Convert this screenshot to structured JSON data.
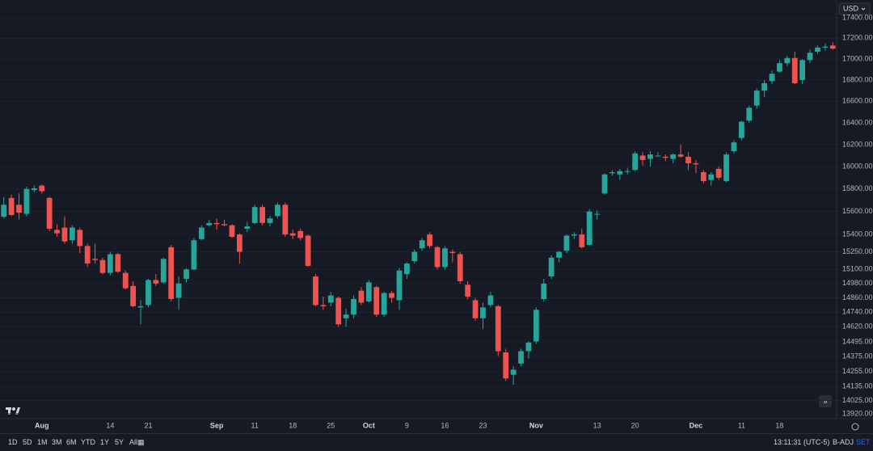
{
  "chart_data": {
    "type": "candlestick",
    "log_scale": true,
    "grid": true,
    "up_color": "#26a69a",
    "down_color": "#ef5350",
    "currency": "USD",
    "categories": [
      null,
      null,
      null,
      null,
      null,
      "Aug",
      null,
      null,
      null,
      null,
      null,
      null,
      null,
      null,
      "14",
      null,
      null,
      null,
      null,
      "21",
      null,
      null,
      null,
      null,
      null,
      null,
      null,
      null,
      "Sep",
      null,
      null,
      null,
      null,
      "11",
      null,
      null,
      null,
      null,
      "18",
      null,
      null,
      null,
      null,
      "25",
      null,
      null,
      null,
      null,
      "Oct",
      null,
      null,
      null,
      null,
      "9",
      null,
      null,
      null,
      null,
      "16",
      null,
      null,
      null,
      null,
      "23",
      null,
      null,
      null,
      null,
      null,
      null,
      "Nov",
      null,
      null,
      null,
      null,
      null,
      null,
      null,
      "13",
      null,
      null,
      null,
      null,
      "20",
      null,
      null,
      null,
      null,
      null,
      null,
      null,
      "Dec",
      null,
      null,
      null,
      null,
      null,
      "11",
      null,
      null,
      null,
      null,
      "18",
      null,
      null,
      null,
      null,
      null,
      null,
      null
    ],
    "open": [
      15555,
      15720,
      15660,
      15580,
      15790,
      15830,
      15720,
      15440,
      15460,
      15350,
      15440,
      15300,
      15190,
      15180,
      15070,
      15230,
      15070,
      14960,
      14780,
      14800,
      15010,
      14990,
      15290,
      14860,
      15020,
      15100,
      15360,
      15480,
      15500,
      15490,
      15480,
      15400,
      15450,
      15500,
      15640,
      15500,
      15560,
      15660,
      15410,
      15430,
      15390,
      15040,
      14800,
      14820,
      14860,
      14690,
      14720,
      14920,
      14830,
      14950,
      14720,
      14900,
      14840,
      15060,
      15170,
      15280,
      15400,
      15290,
      15120,
      15250,
      15230,
      14970,
      14840,
      14690,
      14800,
      14790,
      14410,
      14230,
      14320,
      14420,
      14500,
      14850,
      15040,
      15200,
      15260,
      15390,
      15400,
      15310,
      15580,
      15760,
      15940,
      15930,
      15960,
      15970,
      16100,
      16070,
      16100,
      16090,
      16070,
      16110,
      16090,
      16030,
      15950,
      15880,
      15980,
      15870,
      16140,
      16260,
      16420,
      16560,
      16700,
      16790,
      16880,
      16960,
      17010,
      16800,
      16990,
      17070,
      17110,
      17130
    ],
    "high": [
      15730,
      15750,
      15760,
      15820,
      15830,
      15840,
      15730,
      15490,
      15560,
      15480,
      15460,
      15320,
      15320,
      15200,
      15250,
      15240,
      15090,
      15000,
      14840,
      15020,
      15060,
      15200,
      15310,
      15040,
      15110,
      15370,
      15480,
      15530,
      15540,
      15530,
      15490,
      15410,
      15510,
      15660,
      15660,
      15560,
      15680,
      15680,
      15440,
      15450,
      15400,
      15060,
      14870,
      14910,
      14870,
      14770,
      14880,
      14950,
      15010,
      14960,
      14910,
      14920,
      15110,
      15160,
      15270,
      15370,
      15420,
      15300,
      15300,
      15270,
      15250,
      15000,
      14860,
      14820,
      14910,
      14800,
      14440,
      14300,
      14440,
      14500,
      14780,
      15020,
      15220,
      15260,
      15400,
      15420,
      15450,
      15620,
      15610,
      15940,
      15970,
      15980,
      15990,
      16140,
      16130,
      16140,
      16130,
      16110,
      16120,
      16200,
      16130,
      16060,
      15970,
      15950,
      16000,
      16130,
      16240,
      16420,
      16560,
      16720,
      16800,
      16890,
      16990,
      17030,
      17070,
      17000,
      17090,
      17130,
      17150,
      17160
    ],
    "low": [
      15540,
      15560,
      15530,
      15560,
      15770,
      15760,
      15430,
      15380,
      15320,
      15320,
      15240,
      15120,
      15150,
      15060,
      15050,
      15070,
      14930,
      14780,
      14640,
      14780,
      14960,
      14980,
      14830,
      14760,
      14990,
      15090,
      15350,
      15470,
      15440,
      15470,
      15370,
      15150,
      15420,
      15490,
      15480,
      15470,
      15540,
      15380,
      15360,
      15350,
      15120,
      14790,
      14760,
      14790,
      14620,
      14620,
      14690,
      14800,
      14820,
      14700,
      14700,
      14820,
      14760,
      15020,
      15150,
      15260,
      15280,
      15100,
      15100,
      15160,
      14980,
      14850,
      14670,
      14600,
      14780,
      14380,
      14180,
      14150,
      14300,
      14360,
      14480,
      14830,
      15020,
      15160,
      15240,
      15360,
      15280,
      15300,
      15530,
      15750,
      15920,
      15880,
      15930,
      15960,
      16010,
      16000,
      16090,
      16050,
      16030,
      16080,
      15970,
      15940,
      15850,
      15830,
      15880,
      15860,
      16120,
      16240,
      16400,
      16530,
      16640,
      16760,
      16870,
      16930,
      16760,
      16760,
      16960,
      17050,
      17080,
      17090
    ],
    "close": [
      15660,
      15570,
      15590,
      15800,
      15805,
      15780,
      15450,
      15410,
      15340,
      15460,
      15300,
      15150,
      15180,
      15070,
      15230,
      15080,
      14940,
      14790,
      14790,
      15010,
      14980,
      15190,
      14850,
      14980,
      15100,
      15350,
      15460,
      15500,
      15490,
      15480,
      15380,
      15250,
      15470,
      15640,
      15500,
      15540,
      15660,
      15400,
      15390,
      15370,
      15130,
      14800,
      14790,
      14880,
      14640,
      14720,
      14850,
      14820,
      14990,
      14720,
      14900,
      14860,
      15090,
      15150,
      15250,
      15350,
      15300,
      15120,
      15280,
      15240,
      15000,
      14870,
      14690,
      14780,
      14880,
      14420,
      14200,
      14270,
      14420,
      14490,
      14760,
      14980,
      15200,
      15250,
      15390,
      15400,
      15290,
      15600,
      15580,
      15930,
      15950,
      15960,
      15960,
      16120,
      16060,
      16110,
      16100,
      16080,
      16110,
      16090,
      16030,
      16020,
      15870,
      15930,
      15900,
      16110,
      16220,
      16410,
      16540,
      16700,
      16770,
      16860,
      16960,
      17010,
      16770,
      16990,
      17060,
      17110,
      17120,
      17100
    ],
    "ylim": [
      13882,
      17535
    ],
    "yticks": [
      {
        "value": 17400,
        "label": "17400.00"
      },
      {
        "value": 17200,
        "label": "17200.00"
      },
      {
        "value": 17000,
        "label": "17000.00"
      },
      {
        "value": 16800,
        "label": "16800.00"
      },
      {
        "value": 16600,
        "label": "16600.00"
      },
      {
        "value": 16400,
        "label": "16400.00"
      },
      {
        "value": 16200,
        "label": "16200.00"
      },
      {
        "value": 16000,
        "label": "16000.00"
      },
      {
        "value": 15800,
        "label": "15800.00"
      },
      {
        "value": 15600,
        "label": "15600.00"
      },
      {
        "value": 15400,
        "label": "15400.00"
      },
      {
        "value": 15250,
        "label": "15250.00"
      },
      {
        "value": 15100,
        "label": "15100.00"
      },
      {
        "value": 14980,
        "label": "14980.00"
      },
      {
        "value": 14860,
        "label": "14860.00"
      },
      {
        "value": 14740,
        "label": "14740.00"
      },
      {
        "value": 14620,
        "label": "14620.00"
      },
      {
        "value": 14495,
        "label": "14495.00"
      },
      {
        "value": 14375,
        "label": "14375.00"
      },
      {
        "value": 14255,
        "label": "14255.00"
      },
      {
        "value": 14135,
        "label": "14135.00"
      },
      {
        "value": 14025,
        "label": "14025.00"
      },
      {
        "value": 13920,
        "label": "13920.00"
      }
    ]
  },
  "toolbar": {
    "ranges": [
      "1D",
      "5D",
      "1M",
      "3M",
      "6M",
      "YTD",
      "1Y",
      "5Y",
      "All"
    ],
    "time": "13:11:31 (UTC-5)",
    "adjustment": "B-ADJ",
    "session": "SET"
  }
}
